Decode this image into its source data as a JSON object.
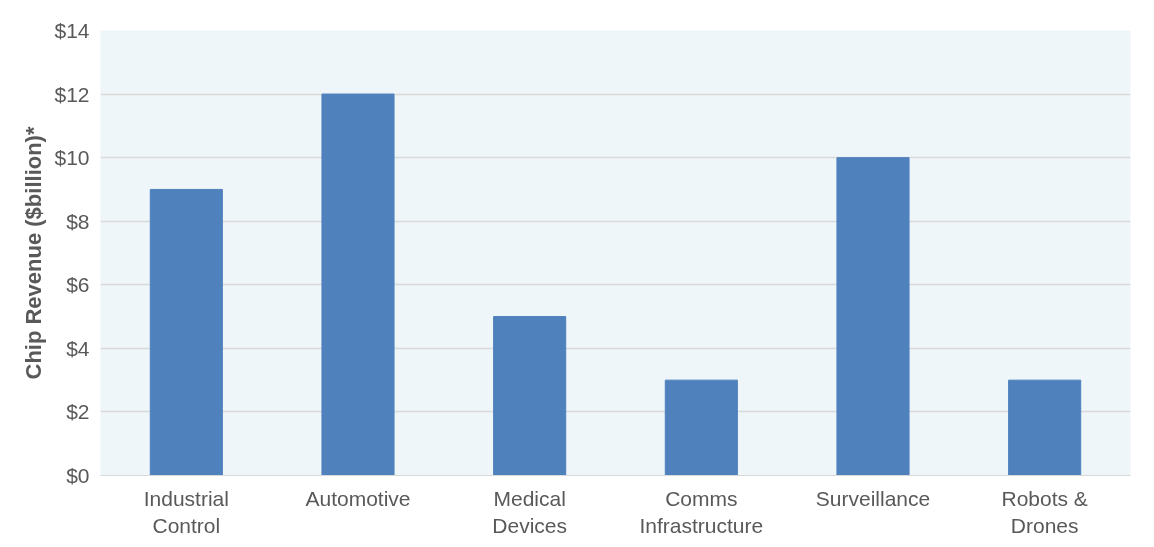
{
  "chart_data": {
    "type": "bar",
    "ylabel": "Chip Revenue ($billion)*",
    "categories": [
      "Industrial Control",
      "Automotive",
      "Medical Devices",
      "Comms Infrastructure",
      "Surveillance",
      "Robots & Drones"
    ],
    "values": [
      9,
      12,
      5,
      3,
      10,
      3
    ],
    "color": "#4f81bd",
    "ylim": [
      0,
      14
    ],
    "yticks": [
      {
        "value": 0,
        "label": "$0"
      },
      {
        "value": 2,
        "label": "$2"
      },
      {
        "value": 4,
        "label": "$4"
      },
      {
        "value": 6,
        "label": "$6"
      },
      {
        "value": 8,
        "label": "$8"
      },
      {
        "value": 10,
        "label": "$10"
      },
      {
        "value": 12,
        "label": "$12"
      },
      {
        "value": 14,
        "label": "$14"
      }
    ],
    "grid": "y"
  }
}
